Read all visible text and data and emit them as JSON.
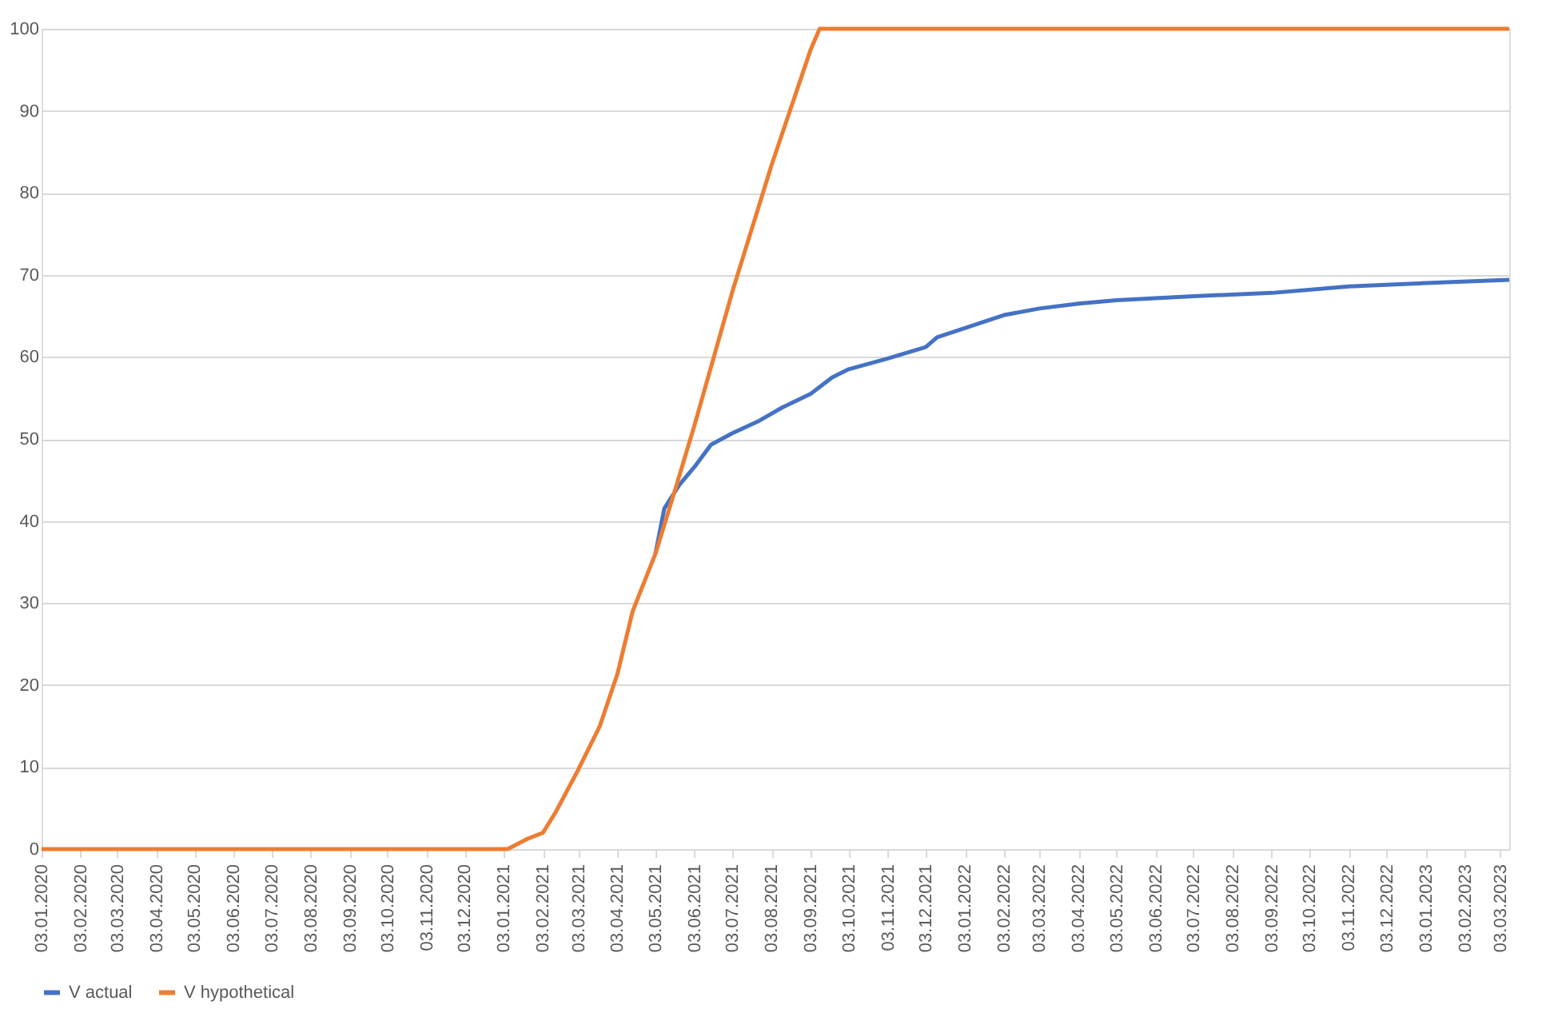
{
  "chart_data": {
    "type": "line",
    "xlim": [
      "2020-01-03",
      "2023-03-10"
    ],
    "ylim": [
      0,
      100
    ],
    "yticks": [
      0,
      10,
      20,
      30,
      40,
      50,
      60,
      70,
      80,
      90,
      100
    ],
    "xticks": [
      {
        "value": "2020-01-03",
        "label": "03.01.2020"
      },
      {
        "value": "2020-02-03",
        "label": "03.02.2020"
      },
      {
        "value": "2020-03-03",
        "label": "03.03.2020"
      },
      {
        "value": "2020-04-03",
        "label": "03.04.2020"
      },
      {
        "value": "2020-05-03",
        "label": "03.05.2020"
      },
      {
        "value": "2020-06-03",
        "label": "03.06.2020"
      },
      {
        "value": "2020-07-03",
        "label": "03.07.2020"
      },
      {
        "value": "2020-08-03",
        "label": "03.08.2020"
      },
      {
        "value": "2020-09-03",
        "label": "03.09.2020"
      },
      {
        "value": "2020-10-03",
        "label": "03.10.2020"
      },
      {
        "value": "2020-11-03",
        "label": "03.11.2020"
      },
      {
        "value": "2020-12-03",
        "label": "03.12.2020"
      },
      {
        "value": "2021-01-03",
        "label": "03.01.2021"
      },
      {
        "value": "2021-02-03",
        "label": "03.02.2021"
      },
      {
        "value": "2021-03-03",
        "label": "03.03.2021"
      },
      {
        "value": "2021-04-03",
        "label": "03.04.2021"
      },
      {
        "value": "2021-05-03",
        "label": "03.05.2021"
      },
      {
        "value": "2021-06-03",
        "label": "03.06.2021"
      },
      {
        "value": "2021-07-03",
        "label": "03.07.2021"
      },
      {
        "value": "2021-08-03",
        "label": "03.08.2021"
      },
      {
        "value": "2021-09-03",
        "label": "03.09.2021"
      },
      {
        "value": "2021-10-03",
        "label": "03.10.2021"
      },
      {
        "value": "2021-11-03",
        "label": "03.11.2021"
      },
      {
        "value": "2021-12-03",
        "label": "03.12.2021"
      },
      {
        "value": "2022-01-03",
        "label": "03.01.2022"
      },
      {
        "value": "2022-02-03",
        "label": "03.02.2022"
      },
      {
        "value": "2022-03-03",
        "label": "03.03.2022"
      },
      {
        "value": "2022-04-03",
        "label": "03.04.2022"
      },
      {
        "value": "2022-05-03",
        "label": "03.05.2022"
      },
      {
        "value": "2022-06-03",
        "label": "03.06.2022"
      },
      {
        "value": "2022-07-03",
        "label": "03.07.2022"
      },
      {
        "value": "2022-08-03",
        "label": "03.08.2022"
      },
      {
        "value": "2022-09-03",
        "label": "03.09.2022"
      },
      {
        "value": "2022-10-03",
        "label": "03.10.2022"
      },
      {
        "value": "2022-11-03",
        "label": "03.11.2022"
      },
      {
        "value": "2022-12-03",
        "label": "03.12.2022"
      },
      {
        "value": "2023-01-03",
        "label": "03.01.2023"
      },
      {
        "value": "2023-02-03",
        "label": "03.02.2023"
      },
      {
        "value": "2023-03-03",
        "label": "03.03.2023"
      }
    ],
    "grid": "y",
    "legend": "bottom",
    "marker": "none",
    "line_style": "solid",
    "series": [
      {
        "name": "V actual",
        "color": "#4472c4",
        "x": [
          "2021-05-03",
          "2021-05-10",
          "2021-05-22",
          "2021-06-04",
          "2021-06-16",
          "2021-07-03",
          "2021-07-24",
          "2021-08-11",
          "2021-09-03",
          "2021-09-20",
          "2021-10-03",
          "2021-11-03",
          "2021-12-03",
          "2021-12-12",
          "2022-01-03",
          "2022-02-03",
          "2022-03-03",
          "2022-04-03",
          "2022-05-03",
          "2022-07-03",
          "2022-09-03",
          "2022-11-03",
          "2023-01-03",
          "2023-03-10"
        ],
        "values": [
          36,
          41.5,
          44.4,
          46.8,
          49.3,
          50.7,
          52.2,
          53.8,
          55.5,
          57.5,
          58.5,
          59.8,
          61.2,
          62.4,
          63.5,
          65.1,
          65.9,
          66.5,
          66.9,
          67.4,
          67.8,
          68.6,
          69,
          69.4
        ]
      },
      {
        "name": "V hypothetical",
        "color": "#ed7d31",
        "x": [
          "2020-01-03",
          "2021-01-06",
          "2021-01-21",
          "2021-02-03",
          "2021-02-13",
          "2021-03-03",
          "2021-03-20",
          "2021-04-03",
          "2021-04-15",
          "2021-05-03",
          "2021-05-19",
          "2021-06-03",
          "2021-07-03",
          "2021-08-03",
          "2021-09-03",
          "2021-09-10",
          "2023-03-10"
        ],
        "values": [
          0,
          0,
          1.2,
          2,
          4.5,
          9.7,
          15,
          21.4,
          29,
          36,
          44,
          51.7,
          68,
          83.4,
          97.5,
          100,
          100
        ]
      }
    ]
  }
}
